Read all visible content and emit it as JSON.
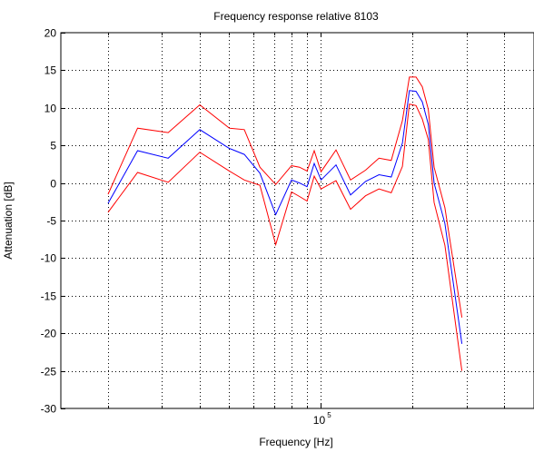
{
  "chart_data": {
    "type": "line",
    "title": "Frequency response relative 8103",
    "xlabel": "Frequency [Hz]",
    "ylabel": "Attenuation [dB]",
    "xscale": "log",
    "xlim": [
      14000,
      500000
    ],
    "ylim": [
      -30,
      20
    ],
    "grid": true,
    "x_ticks": [
      {
        "value": 100000,
        "base": "10",
        "exp": "5"
      }
    ],
    "y_ticks": [
      -30,
      -25,
      -20,
      -15,
      -10,
      -5,
      0,
      5,
      10,
      15,
      20
    ],
    "x": [
      20000,
      25000,
      31500,
      40000,
      50000,
      63000,
      80000,
      90000,
      100000,
      125000,
      160000,
      200000,
      224000,
      250000,
      280000,
      315000,
      355000,
      400000
    ],
    "series": [
      {
        "color": "#ff0000",
        "values": [
          -1.5,
          7.3,
          6.7,
          10.4,
          7.3,
          7.1,
          2.1,
          0.3,
          4.3,
          1.8,
          4.2,
          2.0,
          2.3,
          4.8,
          8.3,
          13.0,
          14.0,
          14.0
        ]
      },
      {
        "color": "#0000ff",
        "values": [
          -2.7,
          4.3,
          3.3,
          7.1,
          4.6,
          4.2,
          1.3,
          -2.2,
          2.3,
          -0.3,
          2.3,
          0.3,
          0.3,
          2.8,
          6.3,
          10.4,
          12.2,
          12.4
        ]
      },
      {
        "color": "#ff0000",
        "values": [
          -3.9,
          1.4,
          0.1,
          4.1,
          1.6,
          0.4,
          -0.3,
          -3.7,
          0.0,
          -3.4,
          0.3,
          -1.5,
          -1.8,
          0.7,
          4.3,
          7.8,
          10.3,
          10.5
        ]
      }
    ],
    "series_x": [
      [
        20000,
        25000,
        31500,
        40000,
        50000,
        56000,
        63000,
        71000,
        80000,
        85000,
        90000,
        95000,
        100000,
        112000,
        125000,
        140000,
        155000,
        170000,
        185000,
        195000,
        205000,
        215000,
        225000,
        235000,
        255000,
        290000
      ],
      [
        20000,
        25000,
        31500,
        40000,
        50000,
        56000,
        63000,
        71000,
        80000,
        85000,
        90000,
        95000,
        100000,
        112000,
        125000,
        140000,
        155000,
        170000,
        185000,
        195000,
        205000,
        215000,
        225000,
        235000,
        255000,
        290000
      ],
      [
        20000,
        25000,
        31500,
        40000,
        50000,
        56000,
        63000,
        71000,
        80000,
        85000,
        90000,
        95000,
        100000,
        112000,
        125000,
        140000,
        155000,
        170000,
        185000,
        195000,
        205000,
        215000,
        225000,
        235000,
        255000,
        290000
      ]
    ],
    "series_y": [
      [
        -1.5,
        7.3,
        6.7,
        10.4,
        7.3,
        7.1,
        2.1,
        -0.2,
        2.3,
        2.1,
        1.6,
        4.3,
        1.5,
        4.4,
        0.4,
        1.7,
        3.3,
        3.0,
        8.3,
        14.1,
        14.1,
        12.8,
        9.8,
        2.1,
        -3.3,
        -17.9
      ],
      [
        -2.7,
        4.3,
        3.3,
        7.1,
        4.6,
        3.8,
        1.3,
        -4.2,
        0.4,
        0.0,
        -0.5,
        2.6,
        0.4,
        2.4,
        -1.6,
        0.2,
        1.1,
        0.8,
        5.3,
        12.3,
        12.2,
        10.8,
        7.8,
        0.0,
        -5.4,
        -21.4
      ],
      [
        -3.9,
        1.4,
        0.1,
        4.1,
        1.6,
        0.4,
        -0.3,
        -8.2,
        -1.2,
        -1.8,
        -2.4,
        0.9,
        -0.8,
        0.3,
        -3.5,
        -1.7,
        -0.8,
        -1.3,
        2.2,
        10.5,
        10.3,
        8.5,
        5.8,
        -2.6,
        -8.3,
        -25.0
      ]
    ]
  }
}
